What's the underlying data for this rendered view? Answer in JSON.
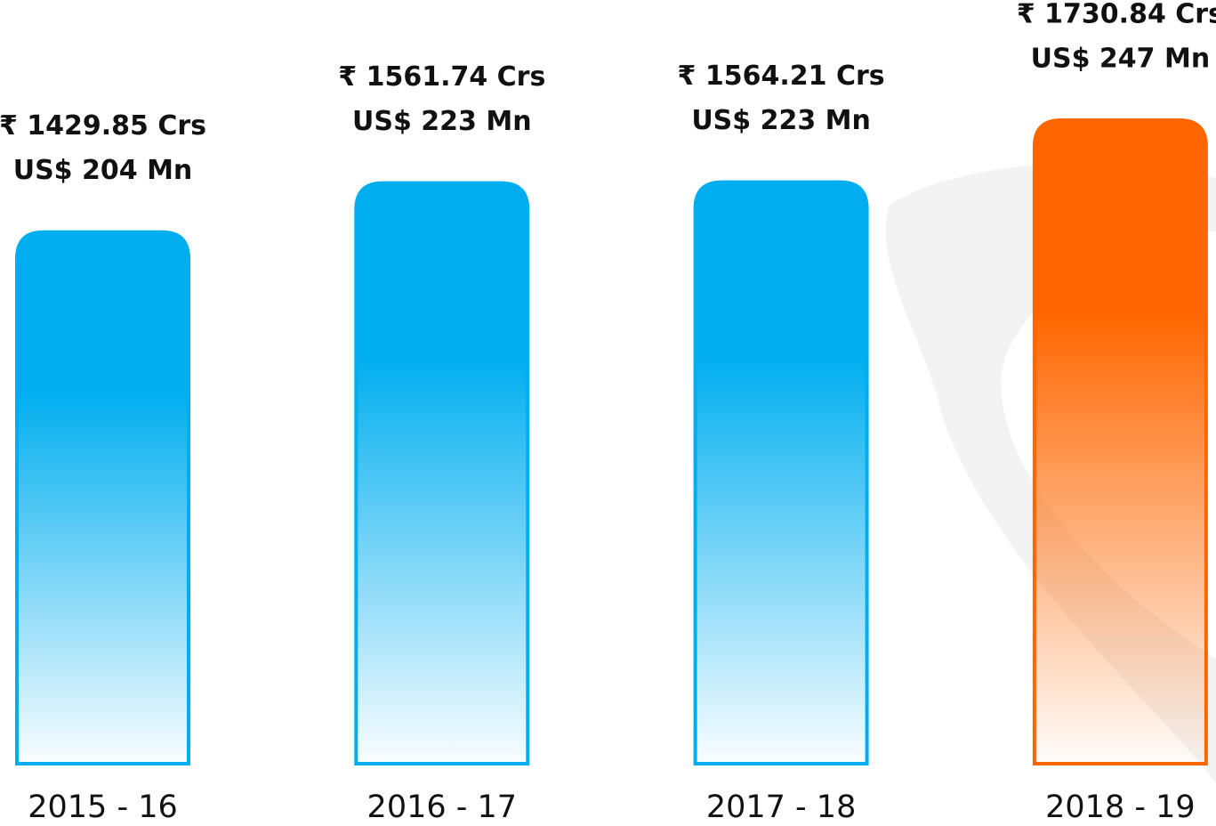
{
  "chart_data": {
    "type": "bar",
    "categories": [
      "2015 - 16",
      "2016 - 17",
      "2017 - 18",
      "2018 - 19"
    ],
    "series": [
      {
        "values": [
          1429.85,
          1561.74,
          1564.21,
          1730.84
        ],
        "value_labels": [
          "₹ 1429.85 Crs",
          "₹ 1561.74 Crs",
          "₹ 1564.21 Crs",
          "₹ 1730.84 Crs"
        ],
        "colors": [
          "#00aeef",
          "#00aeef",
          "#00aeef",
          "#ff6600"
        ]
      },
      {
        "values": [
          204,
          223,
          223,
          247
        ],
        "value_labels": [
          "US$ 204 Mn",
          "US$ 223 Mn",
          "US$ 223 Mn",
          "US$ 247 Mn"
        ]
      }
    ]
  }
}
